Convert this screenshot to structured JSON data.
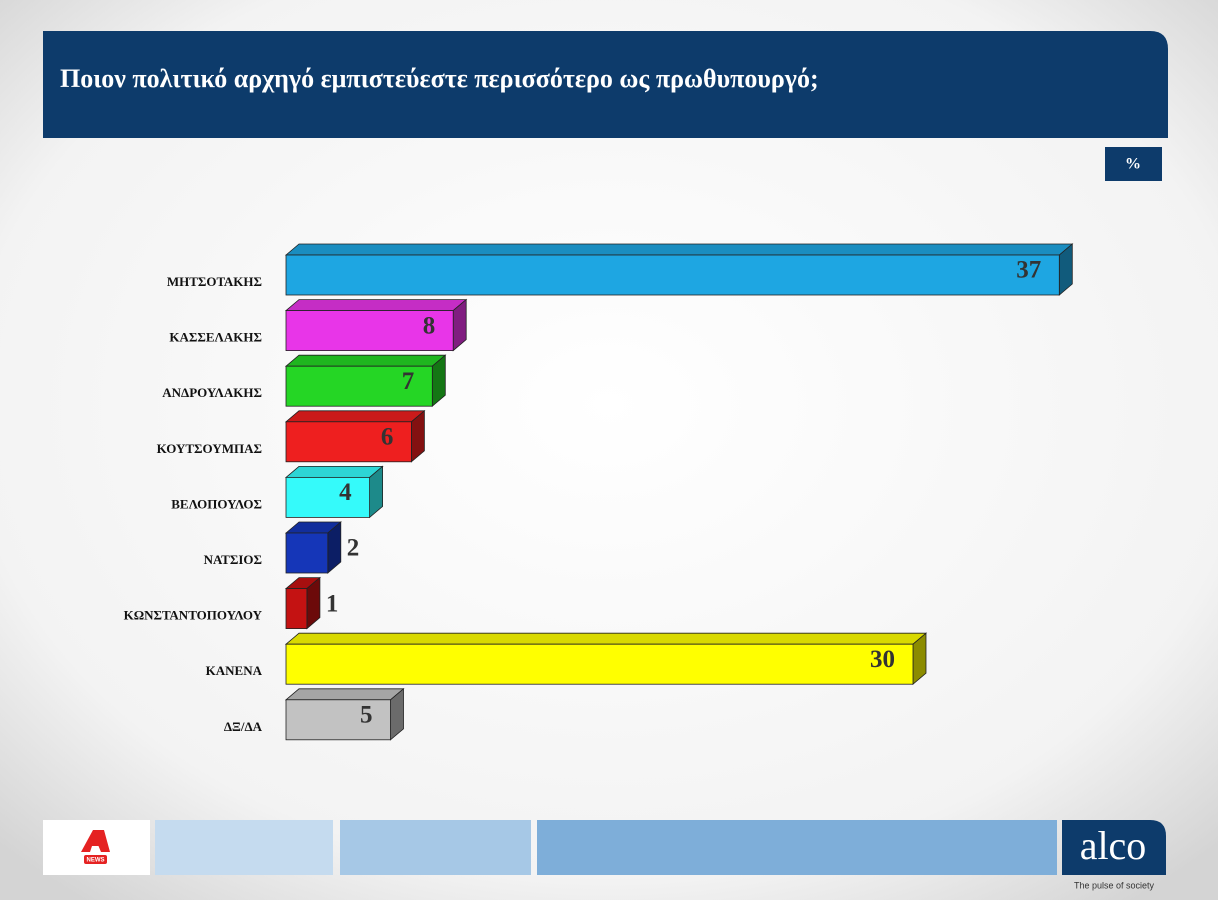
{
  "chart_data": {
    "type": "bar3d",
    "title": "Ποιον πολιτικό αρχηγό εμπιστεύεστε περισσότερο ως πρωθυπουργό;",
    "unit_label": "%",
    "categories": [
      "ΜΗΤΣΟΤΑΚΗΣ",
      "ΚΑΣΣΕΛΑΚΗΣ",
      "ΑΝΔΡΟΥΛΑΚΗΣ",
      "ΚΟΥΤΣΟΥΜΠΑΣ",
      "ΒΕΛΟΠΟΥΛΟΣ",
      "ΝΑΤΣΙΟΣ",
      "ΚΩΝΣΤΑΝΤΟΠΟΥΛΟΥ",
      "ΚΑΝΕΝΑ",
      "ΔΞ/ΔΑ"
    ],
    "values": [
      37,
      8,
      7,
      6,
      4,
      2,
      1,
      30,
      5
    ],
    "colors": [
      "#1ea6e2",
      "#e835e8",
      "#25d625",
      "#ee1f1f",
      "#35fafa",
      "#1536b8",
      "#c41212",
      "#ffff00",
      "#c2c2c2"
    ]
  },
  "footer": {
    "news": "NEWS",
    "logo": "alco",
    "tagline": "The pulse of society"
  }
}
